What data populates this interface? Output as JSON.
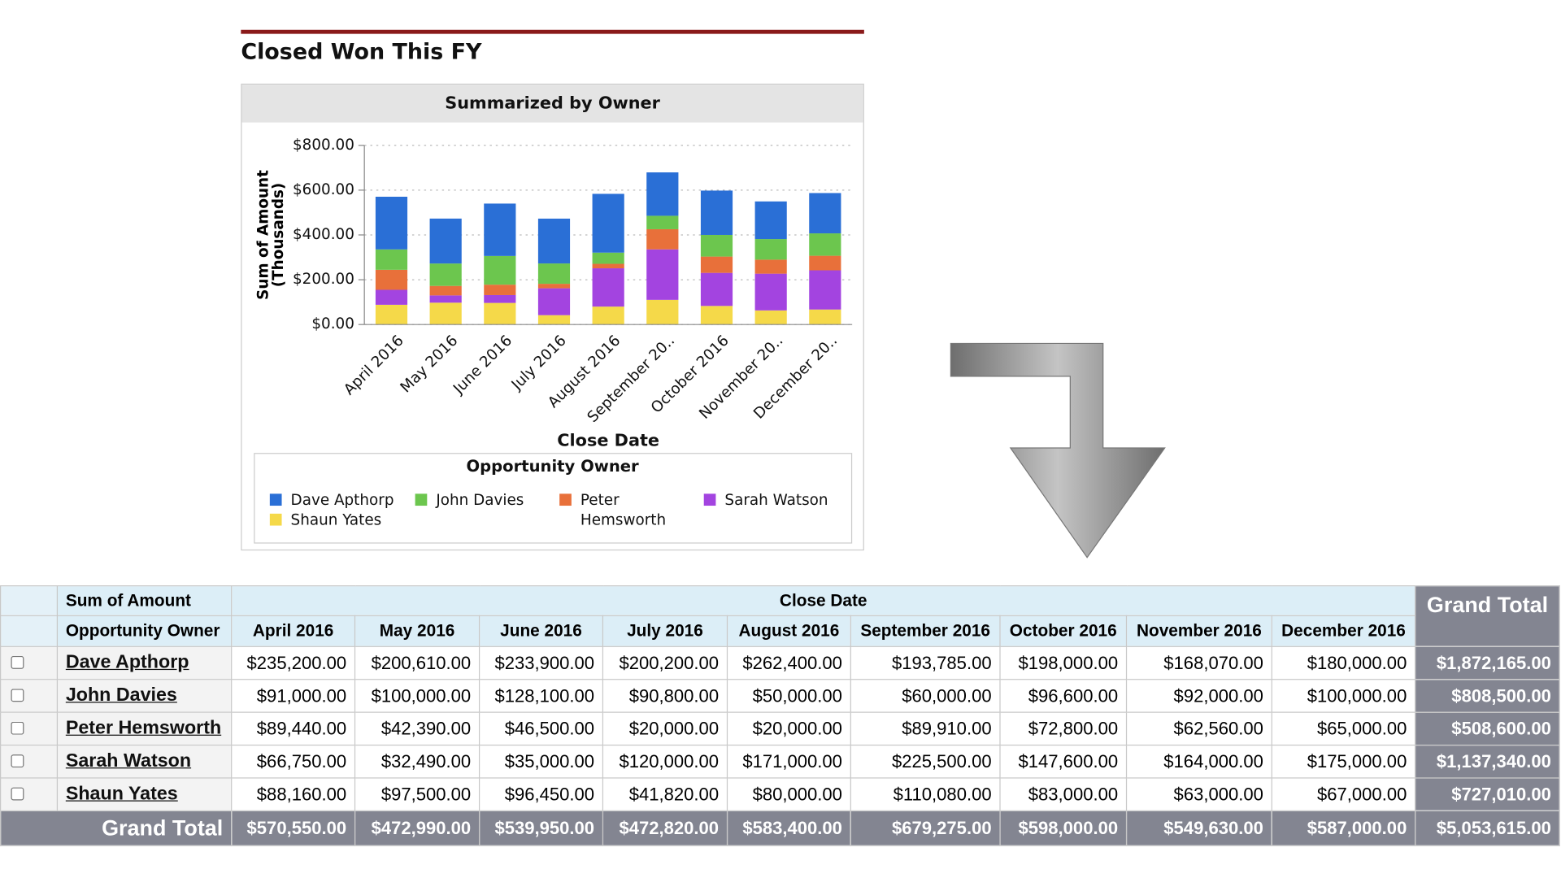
{
  "report_title": "Closed Won This FY",
  "chart_data": {
    "type": "bar",
    "stacked": true,
    "title": "Summarized by Owner",
    "x_label": "Close Date",
    "y_label": "Sum of Amount (Thousands)",
    "legend_title": "Opportunity Owner",
    "categories": [
      "April 2016",
      "May 2016",
      "June 2016",
      "July 2016",
      "August 2016",
      "September 20..",
      "October 2016",
      "November 20..",
      "December 20.."
    ],
    "series": [
      {
        "name": "Dave Apthorp",
        "color": "#2a6fd6",
        "values": [
          235.2,
          200.61,
          233.9,
          200.2,
          262.4,
          193.785,
          198,
          168.07,
          180
        ]
      },
      {
        "name": "John Davies",
        "color": "#6cc64e",
        "values": [
          91,
          100,
          128.1,
          90.8,
          50,
          60,
          96.6,
          92,
          100
        ]
      },
      {
        "name": "Peter Hemsworth",
        "color": "#e8703a",
        "values": [
          89.44,
          42.39,
          46.5,
          20,
          20,
          89.91,
          72.8,
          62.56,
          65
        ]
      },
      {
        "name": "Sarah Watson",
        "color": "#a344e0",
        "values": [
          66.75,
          32.49,
          35,
          120,
          171,
          225.5,
          147.6,
          164,
          175
        ]
      },
      {
        "name": "Shaun Yates",
        "color": "#f5d949",
        "values": [
          88.16,
          97.5,
          96.45,
          41.82,
          80,
          110.08,
          83,
          63,
          67
        ]
      }
    ],
    "ylim": [
      0,
      800
    ],
    "yticks": [
      {
        "value": 0,
        "label": "$0.00"
      },
      {
        "value": 200,
        "label": "$200.00"
      },
      {
        "value": 400,
        "label": "$400.00"
      },
      {
        "value": 600,
        "label": "$600.00"
      },
      {
        "value": 800,
        "label": "$800.00"
      }
    ],
    "grid": true
  },
  "table": {
    "header": {
      "measure": "Sum of Amount",
      "row_field": "Opportunity Owner",
      "column_field": "Close Date",
      "grand_total": "Grand Total",
      "months": [
        "April 2016",
        "May 2016",
        "June 2016",
        "July 2016",
        "August 2016",
        "September 2016",
        "October 2016",
        "November 2016",
        "December 2016"
      ]
    },
    "rows": [
      {
        "owner": "Dave Apthorp",
        "cells": [
          "$235,200.00",
          "$200,610.00",
          "$233,900.00",
          "$200,200.00",
          "$262,400.00",
          "$193,785.00",
          "$198,000.00",
          "$168,070.00",
          "$180,000.00"
        ],
        "total": "$1,872,165.00"
      },
      {
        "owner": "John Davies",
        "cells": [
          "$91,000.00",
          "$100,000.00",
          "$128,100.00",
          "$90,800.00",
          "$50,000.00",
          "$60,000.00",
          "$96,600.00",
          "$92,000.00",
          "$100,000.00"
        ],
        "total": "$808,500.00"
      },
      {
        "owner": "Peter Hemsworth",
        "cells": [
          "$89,440.00",
          "$42,390.00",
          "$46,500.00",
          "$20,000.00",
          "$20,000.00",
          "$89,910.00",
          "$72,800.00",
          "$62,560.00",
          "$65,000.00"
        ],
        "total": "$508,600.00"
      },
      {
        "owner": "Sarah Watson",
        "cells": [
          "$66,750.00",
          "$32,490.00",
          "$35,000.00",
          "$120,000.00",
          "$171,000.00",
          "$225,500.00",
          "$147,600.00",
          "$164,000.00",
          "$175,000.00"
        ],
        "total": "$1,137,340.00"
      },
      {
        "owner": "Shaun Yates",
        "cells": [
          "$88,160.00",
          "$97,500.00",
          "$96,450.00",
          "$41,820.00",
          "$80,000.00",
          "$110,080.00",
          "$83,000.00",
          "$63,000.00",
          "$67,000.00"
        ],
        "total": "$727,010.00"
      }
    ],
    "grand_total_row": {
      "label": "Grand Total",
      "cells": [
        "$570,550.00",
        "$472,990.00",
        "$539,950.00",
        "$472,820.00",
        "$583,400.00",
        "$679,275.00",
        "$598,000.00",
        "$549,630.00",
        "$587,000.00"
      ],
      "total": "$5,053,615.00"
    }
  }
}
